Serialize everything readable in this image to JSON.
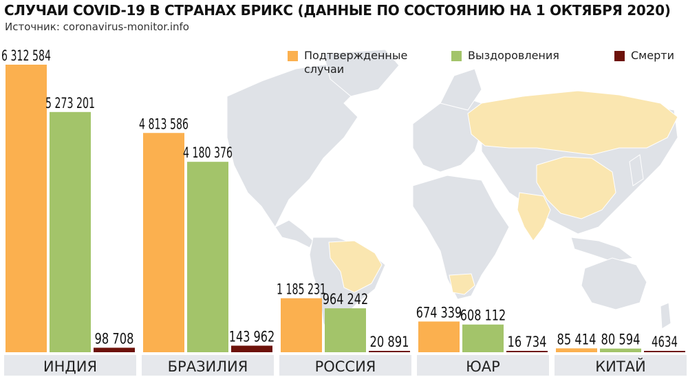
{
  "title": "СЛУЧАИ COVID-19 В СТРАНАХ БРИКС (ДАННЫЕ ПО СОСТОЯНИЮ НА 1 ОКТЯБРЯ 2020)",
  "source": "Источник: coronavirus-monitor.info",
  "colors": {
    "confirmed": "#fbb04f",
    "recovered": "#a3c46a",
    "deaths": "#6d120a",
    "map_land": "#dfe2e7",
    "map_brics": "#fae6b0",
    "label_band": "#e6e8ec"
  },
  "legend": [
    {
      "label": "Подтвержденные\nслучаи",
      "color": "#fbb04f"
    },
    {
      "label": "Выздоровления",
      "color": "#a3c46a"
    },
    {
      "label": "Смерти",
      "color": "#6d120a"
    }
  ],
  "chart_data": {
    "type": "bar",
    "title": "СЛУЧАИ COVID-19 В СТРАНАХ БРИКС (ДАННЫЕ ПО СОСТОЯНИЮ НА 1 ОКТЯБРЯ 2020)",
    "categories": [
      "ИНДИЯ",
      "БРАЗИЛИЯ",
      "РОССИЯ",
      "ЮАР",
      "КИТАЙ"
    ],
    "series": [
      {
        "name": "Подтвержденные случаи",
        "color": "#fbb04f",
        "values": [
          6312584,
          4813586,
          1185231,
          674339,
          85414
        ],
        "labels": [
          "6 312 584",
          "4 813 586",
          "1 185 231",
          "674 339",
          "85 414"
        ]
      },
      {
        "name": "Выздоровления",
        "color": "#a3c46a",
        "values": [
          5273201,
          4180376,
          964242,
          608112,
          80594
        ],
        "labels": [
          "5 273 201",
          "4 180 376",
          "964 242",
          "608 112",
          "80 594"
        ]
      },
      {
        "name": "Смерти",
        "color": "#6d120a",
        "values": [
          98708,
          143962,
          20891,
          16734,
          4634
        ],
        "labels": [
          "98 708",
          "143 962",
          "20 891",
          "16 734",
          "4634"
        ]
      }
    ],
    "ylim": [
      0,
      6312584
    ],
    "legend_position": "top-right",
    "grid": false
  }
}
